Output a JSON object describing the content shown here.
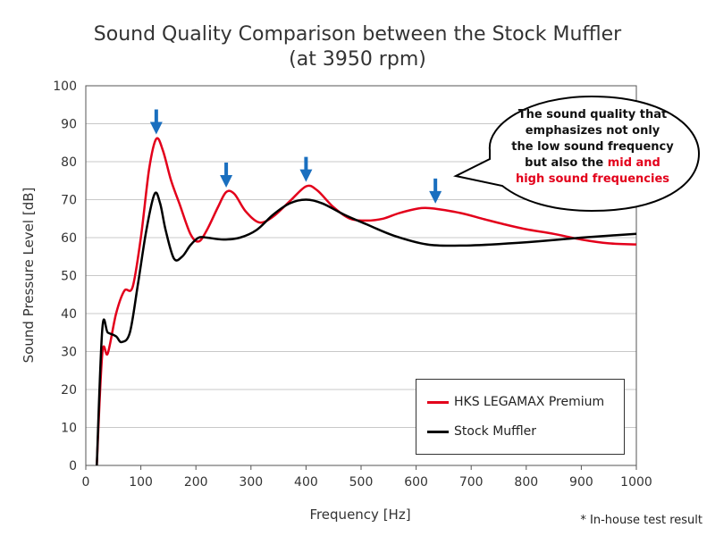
{
  "chart_data": {
    "type": "line",
    "title": "Sound Quality Comparison between the Stock Muffler",
    "subtitle": "(at 3950 rpm)",
    "xlabel": "Frequency [Hz]",
    "ylabel": "Sound Pressure Level [dB]",
    "xlim": [
      0,
      1000
    ],
    "ylim": [
      0,
      100
    ],
    "xticks": [
      0,
      100,
      200,
      300,
      400,
      500,
      600,
      700,
      800,
      900,
      1000
    ],
    "yticks": [
      0,
      10,
      20,
      30,
      40,
      50,
      60,
      70,
      80,
      90,
      100
    ],
    "grid": true,
    "legend_position": "bottom-right",
    "series": [
      {
        "name": "HKS LEGAMAX Premium",
        "color": "#e3001b",
        "x": [
          20,
          30,
          40,
          55,
          70,
          85,
          100,
          115,
          128,
          140,
          155,
          170,
          190,
          205,
          220,
          240,
          255,
          270,
          290,
          315,
          340,
          370,
          400,
          420,
          450,
          480,
          510,
          540,
          570,
          610,
          640,
          680,
          720,
          760,
          800,
          850,
          900,
          950,
          1000
        ],
        "values": [
          0,
          29.5,
          29.5,
          40,
          46,
          47,
          60,
          78,
          86,
          83,
          75,
          69,
          61,
          59,
          62,
          68,
          72,
          71.5,
          67,
          64,
          65.5,
          69.5,
          73.5,
          72.5,
          68,
          65,
          64.5,
          65,
          66.5,
          67.8,
          67.5,
          66.5,
          65,
          63.5,
          62.2,
          61,
          59.5,
          58.5,
          58.2
        ]
      },
      {
        "name": "Stock Muffler",
        "color": "#000000",
        "x": [
          20,
          30,
          40,
          55,
          65,
          80,
          95,
          110,
          125,
          135,
          145,
          160,
          175,
          190,
          205,
          220,
          250,
          280,
          310,
          340,
          370,
          400,
          430,
          470,
          510,
          560,
          620,
          680,
          750,
          820,
          900,
          960,
          1000
        ],
        "values": [
          0,
          36,
          35,
          34,
          32.5,
          35,
          48,
          62,
          71.5,
          69,
          62,
          54.5,
          55,
          58,
          60,
          60,
          59.5,
          60,
          62,
          66,
          69,
          70,
          69,
          66,
          63.5,
          60.5,
          58.2,
          57.9,
          58.3,
          59,
          60,
          60.6,
          61
        ]
      }
    ],
    "annotations": [
      {
        "label": "arrow",
        "x": 128,
        "y": 86
      },
      {
        "label": "arrow",
        "x": 255,
        "y": 72
      },
      {
        "label": "arrow",
        "x": 400,
        "y": 73.5
      },
      {
        "label": "arrow",
        "x": 635,
        "y": 67.8
      }
    ]
  },
  "callout": {
    "line1": "The sound quality that",
    "line2": "emphasizes not only",
    "line3": "the low sound frequency",
    "line4_prefix": "but also the ",
    "line4_highlight": "mid and",
    "line5_highlight": "high sound frequencies"
  },
  "note": "* In-house test result",
  "colors": {
    "highlight": "#e3001b",
    "arrow": "#1a6fbf",
    "grid": "#c8c8c8"
  }
}
